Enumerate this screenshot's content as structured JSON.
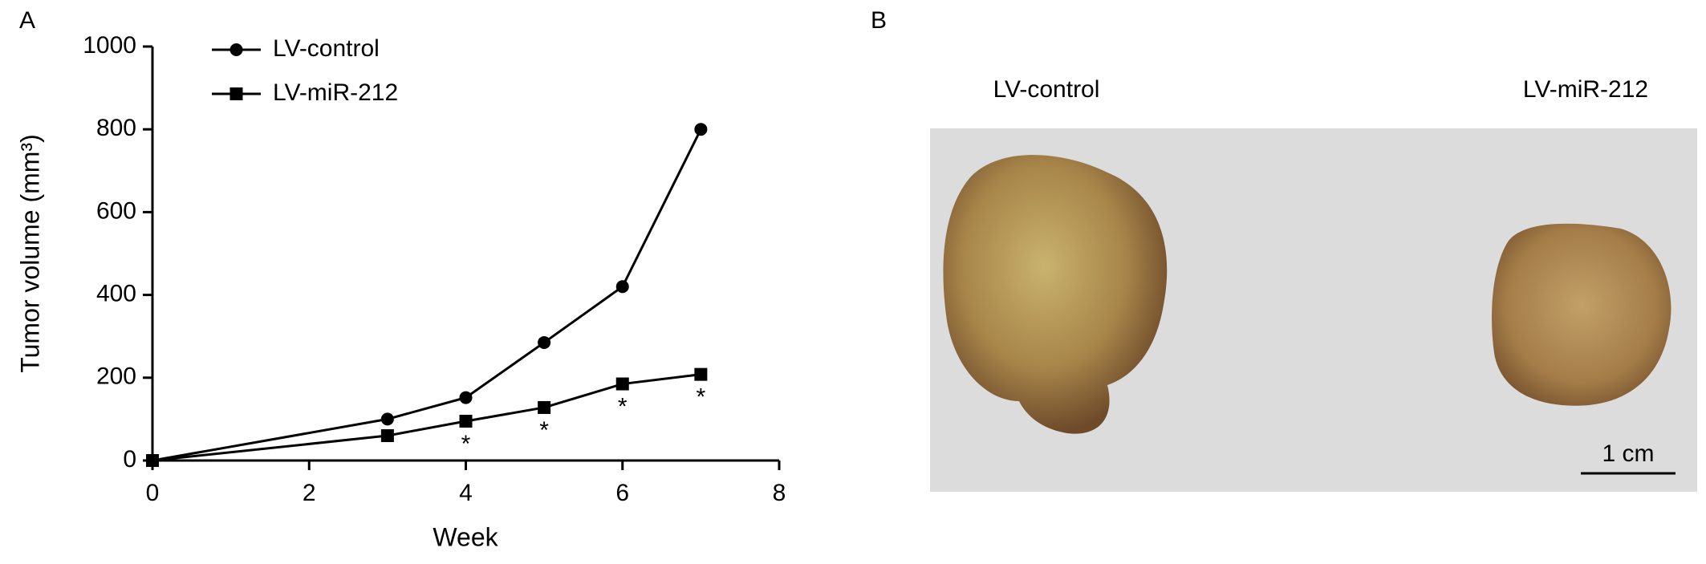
{
  "chart_data": {
    "type": "line",
    "panel_label": "A",
    "x_label": "Week",
    "y_label": "Tumor volume (mm³)",
    "x": [
      0,
      3,
      4,
      5,
      6,
      7
    ],
    "series": [
      {
        "name": "LV-control",
        "color": "#000000",
        "marker": "circle",
        "values": [
          0,
          100,
          152,
          285,
          420,
          800
        ]
      },
      {
        "name": "LV-miR-212",
        "color": "#000000",
        "marker": "square",
        "values": [
          0,
          60,
          95,
          128,
          185,
          208
        ]
      }
    ],
    "annotations": [
      {
        "x": 4,
        "label": "*"
      },
      {
        "x": 5,
        "label": "*"
      },
      {
        "x": 6,
        "label": "*"
      },
      {
        "x": 7,
        "label": "*"
      }
    ],
    "xlim": [
      0,
      8
    ],
    "xticks": [
      0,
      2,
      4,
      6,
      8
    ],
    "ylim": [
      0,
      1000
    ],
    "yticks": [
      0,
      200,
      400,
      600,
      800,
      1000
    ]
  },
  "photo": {
    "panel_label": "B",
    "labels": [
      "LV-control",
      "LV-miR-212"
    ],
    "scale_bar": "1 cm"
  }
}
